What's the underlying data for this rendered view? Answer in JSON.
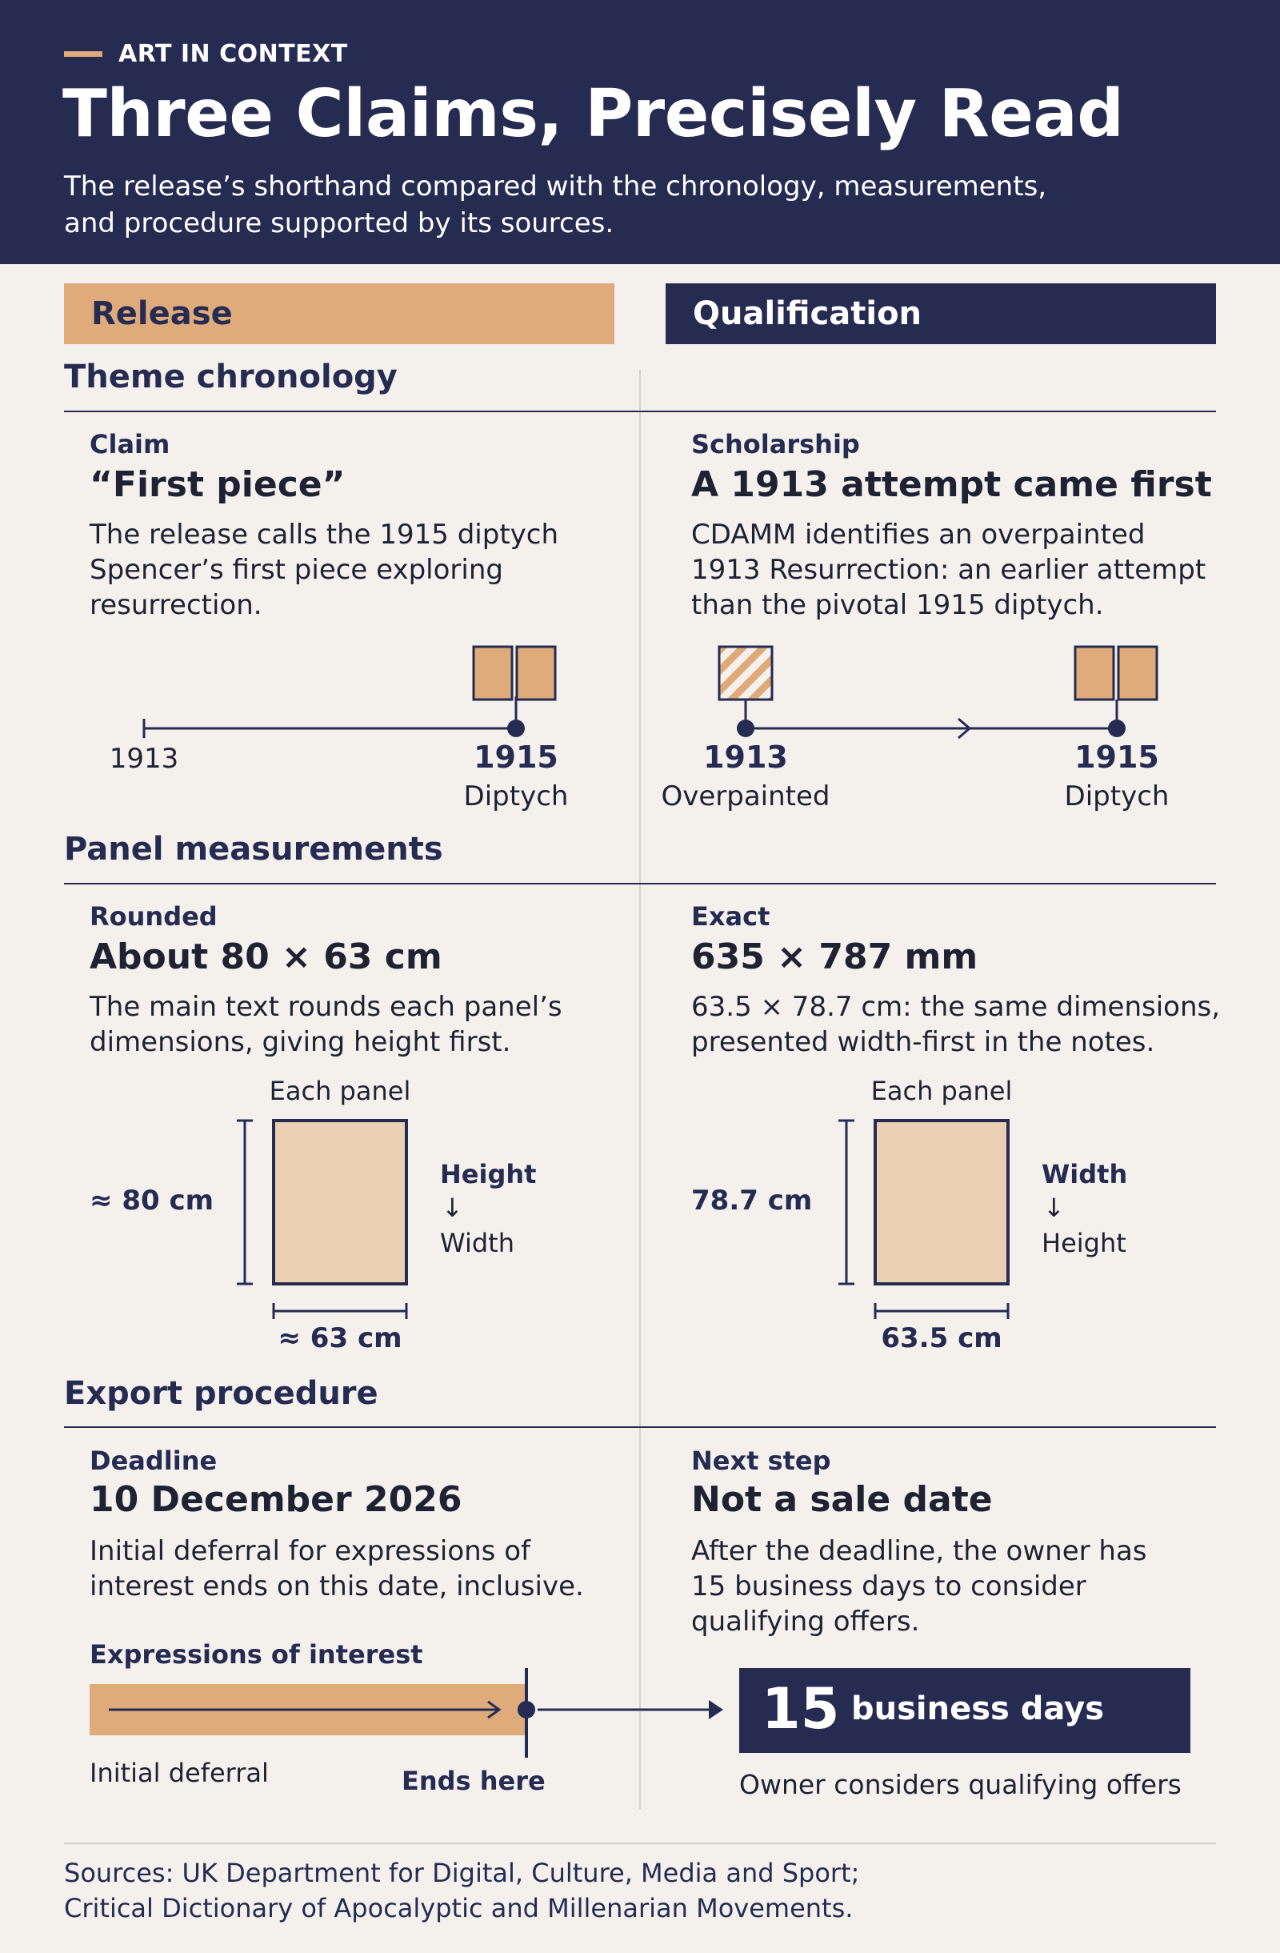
{
  "header": {
    "kicker": "ART IN CONTEXT",
    "title": "Three Claims, Precisely Read",
    "subtitle_line1": "The release’s shorthand compared with the chronology, measurements,",
    "subtitle_line2": "and procedure supported by its sources."
  },
  "columns": {
    "left": "Release",
    "right": "Qualification"
  },
  "colors": {
    "navy": "#262b52",
    "tan": "#dfab7b",
    "panel_fill": "#ebcfb3",
    "background": "#f4f1ed"
  },
  "chronology": {
    "title": "Theme chronology",
    "left": {
      "label": "Claim",
      "headline": "“First piece”",
      "body": [
        "The release calls the 1915 diptych",
        "Spencer’s first piece exploring",
        "resurrection."
      ],
      "timeline": {
        "start": "1913",
        "end": "1915",
        "end_caption": "Diptych"
      }
    },
    "right": {
      "label": "Scholarship",
      "headline": "A 1913 attempt came first",
      "body": [
        "CDAMM identifies an overpainted",
        "1913 Resurrection: an earlier attempt",
        "than the pivotal 1915 diptych."
      ],
      "timeline": {
        "start": "1913",
        "start_caption": "Overpainted",
        "end": "1915",
        "end_caption": "Diptych"
      }
    }
  },
  "measurements": {
    "title": "Panel measurements",
    "left": {
      "label": "Rounded",
      "headline": "About 80 × 63 cm",
      "body": [
        "The main text rounds each panel’s",
        "dimensions, giving height first."
      ],
      "panel_caption": "Each panel",
      "height": "≈ 80 cm",
      "width": "≈ 63 cm",
      "order_first": "Height",
      "arrow": "↓",
      "order_second": "Width"
    },
    "right": {
      "label": "Exact",
      "headline": "635 × 787 mm",
      "body": [
        "63.5 × 78.7 cm: the same dimensions,",
        "presented width-first in the notes."
      ],
      "panel_caption": "Each panel",
      "height": "78.7 cm",
      "width": "63.5 cm",
      "order_first": "Width",
      "arrow": "↓",
      "order_second": "Height"
    }
  },
  "procedure": {
    "title": "Export procedure",
    "left": {
      "label": "Deadline",
      "headline": "10 December 2026",
      "body": [
        "Initial deferral for expressions of",
        "interest ends on this date, inclusive."
      ],
      "bar_label": "Expressions of interest",
      "bar_start": "Initial deferral",
      "bar_end": "Ends here"
    },
    "right": {
      "label": "Next step",
      "headline": "Not a sale date",
      "body": [
        "After the deadline, the owner has",
        "15 business days to consider",
        "qualifying offers."
      ],
      "days_number": "15",
      "days_unit": "business days",
      "caption": "Owner considers qualifying offers"
    }
  },
  "sources": [
    "Sources: UK Department for Digital, Culture, Media and Sport;",
    "Critical Dictionary of Apocalyptic and Millenarian Movements."
  ]
}
